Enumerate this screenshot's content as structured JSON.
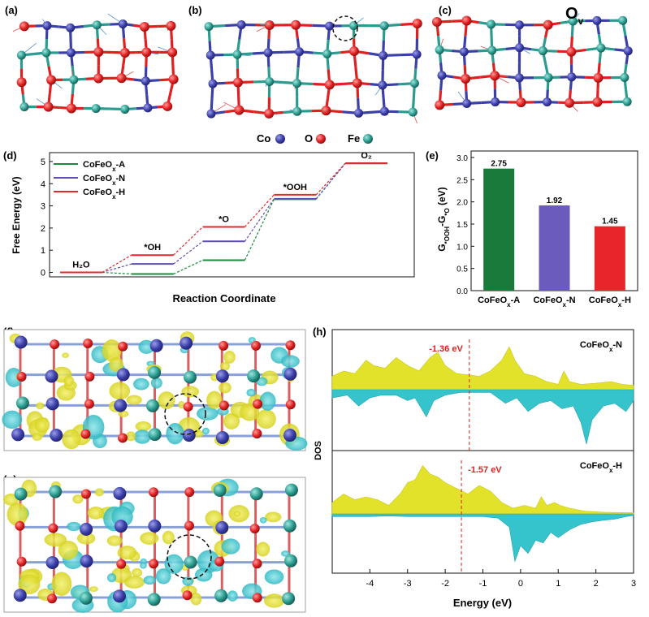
{
  "panel_labels": {
    "a": "(a)",
    "b": "(b)",
    "c": "(c)",
    "d": "(d)",
    "e": "(e)",
    "f": "(f)",
    "g": "(g)",
    "h": "(h)"
  },
  "structure_legend": [
    {
      "label": "Co",
      "color": "#3b3fa8"
    },
    {
      "label": "O",
      "color": "#e02020"
    },
    {
      "label": "Fe",
      "color": "#2a9b8f"
    }
  ],
  "ov_label": "Ov",
  "colors": {
    "co": "#3b3fa8",
    "o": "#e02020",
    "fe": "#2a9b8f",
    "yellow": "#e3e22b",
    "cyan": "#35c3cc",
    "green": "#1a8a3e",
    "purple": "#5e4fb5",
    "red": "#e8252b"
  },
  "chart_data": [
    {
      "panel": "d",
      "type": "line",
      "ylabel": "Free Energy (eV)",
      "xlabel": "Reaction Coordinate",
      "ylim": [
        0,
        5
      ],
      "yticks": [
        0,
        1,
        2,
        3,
        4,
        5
      ],
      "categories": [
        "H2O",
        "*OH",
        "*O",
        "*OOH",
        "O2"
      ],
      "category_labels": [
        "H₂O",
        "*OH",
        "*O",
        "*OOH",
        "O₂"
      ],
      "series": [
        {
          "name": "CoFeOx-A",
          "color": "#1a8a3e",
          "values": [
            0,
            -0.07,
            0.55,
            3.3,
            4.92
          ]
        },
        {
          "name": "CoFeOx-N",
          "color": "#5e4fb5",
          "values": [
            0,
            0.38,
            1.4,
            3.32,
            4.92
          ]
        },
        {
          "name": "CoFeOx-H",
          "color": "#e8252b",
          "values": [
            0,
            0.78,
            2.05,
            3.5,
            4.92
          ]
        }
      ],
      "legend": "top-left"
    },
    {
      "panel": "e",
      "type": "bar",
      "ylabel": "G*OOH-G*O (eV)",
      "ylim": [
        0,
        3.0
      ],
      "yticks": [
        "0.0",
        "0.5",
        "1.0",
        "1.5",
        "2.0",
        "2.5",
        "3.0"
      ],
      "categories": [
        "CoFeOx-A",
        "CoFeOx-N",
        "CoFeOx-H"
      ],
      "values": [
        2.75,
        1.92,
        1.45
      ],
      "value_labels": [
        "2.75",
        "1.92",
        "1.45"
      ],
      "colors": [
        "#1a7a3c",
        "#6a5bbd",
        "#e8252b"
      ]
    },
    {
      "panel": "h",
      "type": "area",
      "ylabel": "DOS",
      "xlabel": "Energy (eV)",
      "xlim": [
        -5,
        3
      ],
      "xticks": [
        -4,
        -3,
        -2,
        -1,
        0,
        1,
        2,
        3
      ],
      "subplots": [
        {
          "label": "CoFeOx-N",
          "marker_value": -1.36,
          "marker_label": "-1.36 eV",
          "spin_up": [
            [
              -5,
              0.25
            ],
            [
              -4.7,
              0.35
            ],
            [
              -4.4,
              0.3
            ],
            [
              -4.1,
              0.55
            ],
            [
              -3.9,
              0.45
            ],
            [
              -3.6,
              0.4
            ],
            [
              -3.3,
              0.6
            ],
            [
              -3.0,
              0.45
            ],
            [
              -2.7,
              0.35
            ],
            [
              -2.4,
              0.6
            ],
            [
              -2.2,
              0.7
            ],
            [
              -2.0,
              0.45
            ],
            [
              -1.7,
              0.3
            ],
            [
              -1.4,
              0.28
            ],
            [
              -1.1,
              0.25
            ],
            [
              -0.8,
              0.35
            ],
            [
              -0.5,
              0.55
            ],
            [
              -0.3,
              0.8
            ],
            [
              -0.15,
              0.55
            ],
            [
              0.1,
              0.3
            ],
            [
              0.4,
              0.25
            ],
            [
              0.7,
              0.15
            ],
            [
              1.0,
              0.1
            ],
            [
              1.15,
              0.35
            ],
            [
              1.3,
              0.15
            ],
            [
              1.6,
              0.1
            ],
            [
              2.0,
              0.12
            ],
            [
              2.4,
              0.15
            ],
            [
              2.7,
              0.1
            ],
            [
              3.0,
              0.08
            ]
          ],
          "spin_down": [
            [
              -5,
              -0.15
            ],
            [
              -4.6,
              -0.1
            ],
            [
              -4.3,
              -0.3
            ],
            [
              -4.0,
              -0.15
            ],
            [
              -3.7,
              -0.1
            ],
            [
              -3.3,
              -0.1
            ],
            [
              -3.0,
              -0.2
            ],
            [
              -2.8,
              -0.15
            ],
            [
              -2.5,
              -0.5
            ],
            [
              -2.3,
              -0.2
            ],
            [
              -2.0,
              -0.1
            ],
            [
              -1.6,
              -0.05
            ],
            [
              -1.2,
              -0.05
            ],
            [
              -0.8,
              -0.05
            ],
            [
              -0.4,
              -0.25
            ],
            [
              -0.1,
              -0.15
            ],
            [
              0.2,
              -0.4
            ],
            [
              0.5,
              -0.25
            ],
            [
              0.8,
              -0.2
            ],
            [
              1.1,
              -0.35
            ],
            [
              1.4,
              -0.3
            ],
            [
              1.6,
              -0.6
            ],
            [
              1.75,
              -1.0
            ],
            [
              1.9,
              -0.55
            ],
            [
              2.2,
              -0.3
            ],
            [
              2.5,
              -0.25
            ],
            [
              2.8,
              -0.4
            ],
            [
              3.0,
              -0.2
            ]
          ]
        },
        {
          "label": "CoFeOx-H",
          "marker_value": -1.57,
          "marker_label": "-1.57 eV",
          "spin_up": [
            [
              -5,
              0.2
            ],
            [
              -4.7,
              0.35
            ],
            [
              -4.4,
              0.25
            ],
            [
              -4.1,
              0.3
            ],
            [
              -3.8,
              0.25
            ],
            [
              -3.5,
              0.15
            ],
            [
              -3.2,
              0.35
            ],
            [
              -3.0,
              0.55
            ],
            [
              -2.8,
              0.6
            ],
            [
              -2.6,
              0.85
            ],
            [
              -2.4,
              0.7
            ],
            [
              -2.2,
              0.65
            ],
            [
              -2.0,
              0.55
            ],
            [
              -1.7,
              0.45
            ],
            [
              -1.4,
              0.35
            ],
            [
              -1.1,
              0.5
            ],
            [
              -0.8,
              0.4
            ],
            [
              -0.5,
              0.2
            ],
            [
              -0.2,
              0.1
            ],
            [
              0.1,
              0.15
            ],
            [
              0.4,
              0.1
            ],
            [
              0.55,
              0.3
            ],
            [
              0.7,
              0.15
            ],
            [
              0.9,
              0.2
            ],
            [
              1.05,
              0.15
            ],
            [
              1.3,
              0.1
            ],
            [
              1.7,
              0.05
            ],
            [
              2.2,
              0.03
            ],
            [
              3.0,
              0.02
            ]
          ],
          "spin_down": [
            [
              -5,
              -0.05
            ],
            [
              -4.5,
              -0.05
            ],
            [
              -4.0,
              -0.05
            ],
            [
              -3.5,
              -0.04
            ],
            [
              -3.0,
              -0.05
            ],
            [
              -2.5,
              -0.05
            ],
            [
              -2.0,
              -0.05
            ],
            [
              -1.5,
              -0.05
            ],
            [
              -1.0,
              -0.05
            ],
            [
              -0.6,
              -0.08
            ],
            [
              -0.3,
              -0.25
            ],
            [
              -0.15,
              -0.9
            ],
            [
              0.0,
              -0.6
            ],
            [
              0.2,
              -0.75
            ],
            [
              0.4,
              -0.5
            ],
            [
              0.6,
              -0.55
            ],
            [
              0.8,
              -0.35
            ],
            [
              1.0,
              -0.45
            ],
            [
              1.3,
              -0.3
            ],
            [
              1.6,
              -0.2
            ],
            [
              1.9,
              -0.15
            ],
            [
              2.2,
              -0.12
            ],
            [
              2.5,
              -0.1
            ],
            [
              2.8,
              -0.05
            ],
            [
              3.0,
              -0.03
            ]
          ]
        }
      ]
    }
  ]
}
